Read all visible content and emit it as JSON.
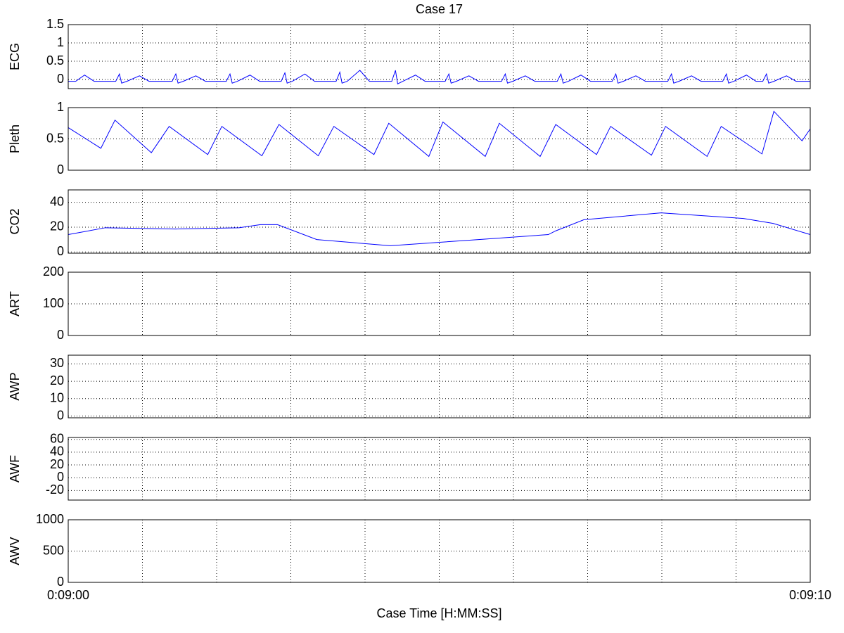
{
  "chart_data": [
    {
      "type": "line",
      "title": "Case 17",
      "ylabel": "ECG",
      "xlim": [
        540,
        550
      ],
      "ylim": [
        -0.25,
        1.5
      ],
      "yticks": [
        0,
        0.5,
        1,
        1.5
      ],
      "grid": true,
      "xgrid": [
        541,
        542,
        543,
        544,
        545,
        546,
        547,
        548,
        549
      ],
      "series": [
        {
          "color": "#0000ff",
          "x": [
            540,
            540.1,
            540.22,
            540.35,
            540.64,
            540.69,
            540.72,
            540.79,
            540.96,
            541.09,
            541.4,
            541.45,
            541.48,
            541.55,
            541.72,
            541.85,
            542.13,
            542.18,
            542.21,
            542.28,
            542.45,
            542.58,
            542.87,
            542.92,
            542.95,
            543.02,
            543.19,
            543.32,
            543.61,
            543.66,
            543.69,
            543.76,
            543.93,
            544.06,
            544.36,
            544.41,
            544.44,
            544.51,
            544.68,
            544.81,
            545.08,
            545.13,
            545.16,
            545.23,
            545.4,
            545.53,
            545.84,
            545.89,
            545.92,
            545.99,
            546.16,
            546.29,
            546.59,
            546.64,
            546.67,
            546.74,
            546.91,
            547.04,
            547.33,
            547.38,
            547.41,
            547.48,
            547.65,
            547.78,
            548.08,
            548.13,
            548.16,
            548.23,
            548.4,
            548.53,
            548.82,
            548.87,
            548.9,
            548.97,
            549.14,
            549.27,
            549.36,
            549.41,
            549.44,
            549.51,
            549.68,
            549.81,
            550
          ],
          "values": [
            -0.05,
            -0.05,
            0.12,
            -0.05,
            -0.05,
            0.15,
            -0.1,
            -0.05,
            0.1,
            -0.05,
            -0.05,
            0.15,
            -0.1,
            -0.05,
            0.1,
            -0.05,
            -0.05,
            0.15,
            -0.1,
            -0.05,
            0.12,
            -0.05,
            -0.05,
            0.18,
            -0.1,
            -0.05,
            0.15,
            -0.05,
            -0.05,
            0.2,
            -0.1,
            -0.05,
            0.25,
            -0.05,
            -0.05,
            0.25,
            -0.12,
            -0.05,
            0.12,
            -0.05,
            -0.05,
            0.15,
            -0.1,
            -0.05,
            0.1,
            -0.05,
            -0.05,
            0.15,
            -0.1,
            -0.05,
            0.1,
            -0.05,
            -0.05,
            0.15,
            -0.1,
            -0.05,
            0.12,
            -0.05,
            -0.05,
            0.15,
            -0.1,
            -0.05,
            0.1,
            -0.05,
            -0.05,
            0.15,
            -0.1,
            -0.05,
            0.1,
            -0.05,
            -0.05,
            0.15,
            -0.1,
            -0.05,
            0.12,
            -0.05,
            -0.05,
            0.15,
            -0.1,
            -0.05,
            0.1,
            -0.05,
            -0.05
          ]
        }
      ]
    },
    {
      "type": "line",
      "ylabel": "Pleth",
      "xlim": [
        540,
        550
      ],
      "ylim": [
        0,
        1
      ],
      "yticks": [
        0,
        0.5,
        1
      ],
      "grid": true,
      "xgrid": [
        541,
        542,
        543,
        544,
        545,
        546,
        547,
        548,
        549
      ],
      "series": [
        {
          "color": "#0000ff",
          "x": [
            540,
            540.44,
            540.63,
            541.12,
            541.36,
            541.88,
            542.07,
            542.61,
            542.84,
            543.37,
            543.58,
            544.12,
            544.32,
            544.86,
            545.05,
            545.62,
            545.81,
            546.36,
            546.57,
            547.12,
            547.31,
            547.86,
            548.05,
            548.61,
            548.8,
            549.35,
            549.51,
            549.89,
            550
          ],
          "values": [
            0.68,
            0.35,
            0.8,
            0.28,
            0.7,
            0.25,
            0.7,
            0.23,
            0.73,
            0.23,
            0.7,
            0.25,
            0.75,
            0.22,
            0.77,
            0.22,
            0.75,
            0.22,
            0.73,
            0.25,
            0.7,
            0.24,
            0.7,
            0.22,
            0.7,
            0.26,
            0.94,
            0.47,
            0.66
          ]
        }
      ]
    },
    {
      "type": "line",
      "ylabel": "CO2",
      "xlim": [
        540,
        550
      ],
      "ylim": [
        -1,
        50
      ],
      "yticks": [
        0,
        20,
        40
      ],
      "grid": true,
      "xgrid": [
        541,
        542,
        543,
        544,
        545,
        546,
        547,
        548,
        549
      ],
      "series": [
        {
          "color": "#0000ff",
          "x": [
            540,
            540.5,
            541.45,
            542.3,
            542.59,
            542.82,
            543.35,
            544.34,
            545.53,
            546.47,
            546.57,
            546.95,
            547.99,
            549.1,
            549.5,
            550
          ],
          "values": [
            14,
            19.5,
            18.5,
            19.5,
            22,
            22,
            10,
            5,
            10,
            14,
            17,
            26,
            31.5,
            27,
            23,
            14
          ]
        }
      ]
    },
    {
      "type": "line",
      "ylabel": "ART",
      "xlim": [
        540,
        550
      ],
      "ylim": [
        0,
        200
      ],
      "yticks": [
        0,
        100,
        200
      ],
      "grid": true,
      "xgrid": [
        541,
        542,
        543,
        544,
        545,
        546,
        547,
        548,
        549
      ],
      "series": []
    },
    {
      "type": "line",
      "ylabel": "AWP",
      "xlim": [
        540,
        550
      ],
      "ylim": [
        -1,
        35
      ],
      "yticks": [
        0,
        10,
        20,
        30
      ],
      "grid": true,
      "xgrid": [
        541,
        542,
        543,
        544,
        545,
        546,
        547,
        548,
        549
      ],
      "series": []
    },
    {
      "type": "line",
      "ylabel": "AWF",
      "xlim": [
        540,
        550
      ],
      "ylim": [
        -35,
        63
      ],
      "yticks": [
        -20,
        0,
        20,
        40,
        60
      ],
      "grid": true,
      "xgrid": [
        541,
        542,
        543,
        544,
        545,
        546,
        547,
        548,
        549
      ],
      "series": []
    },
    {
      "type": "line",
      "ylabel": "AWV",
      "xlabel": "Case Time [H:MM:SS]",
      "xlim": [
        540,
        550
      ],
      "ylim": [
        0,
        1000
      ],
      "yticks": [
        0,
        500,
        1000
      ],
      "grid": true,
      "xgrid": [
        541,
        542,
        543,
        544,
        545,
        546,
        547,
        548,
        549
      ],
      "xticks": [
        {
          "value": 540,
          "label": "0:09:00"
        },
        {
          "value": 550,
          "label": "0:09:10"
        }
      ],
      "series": []
    }
  ]
}
